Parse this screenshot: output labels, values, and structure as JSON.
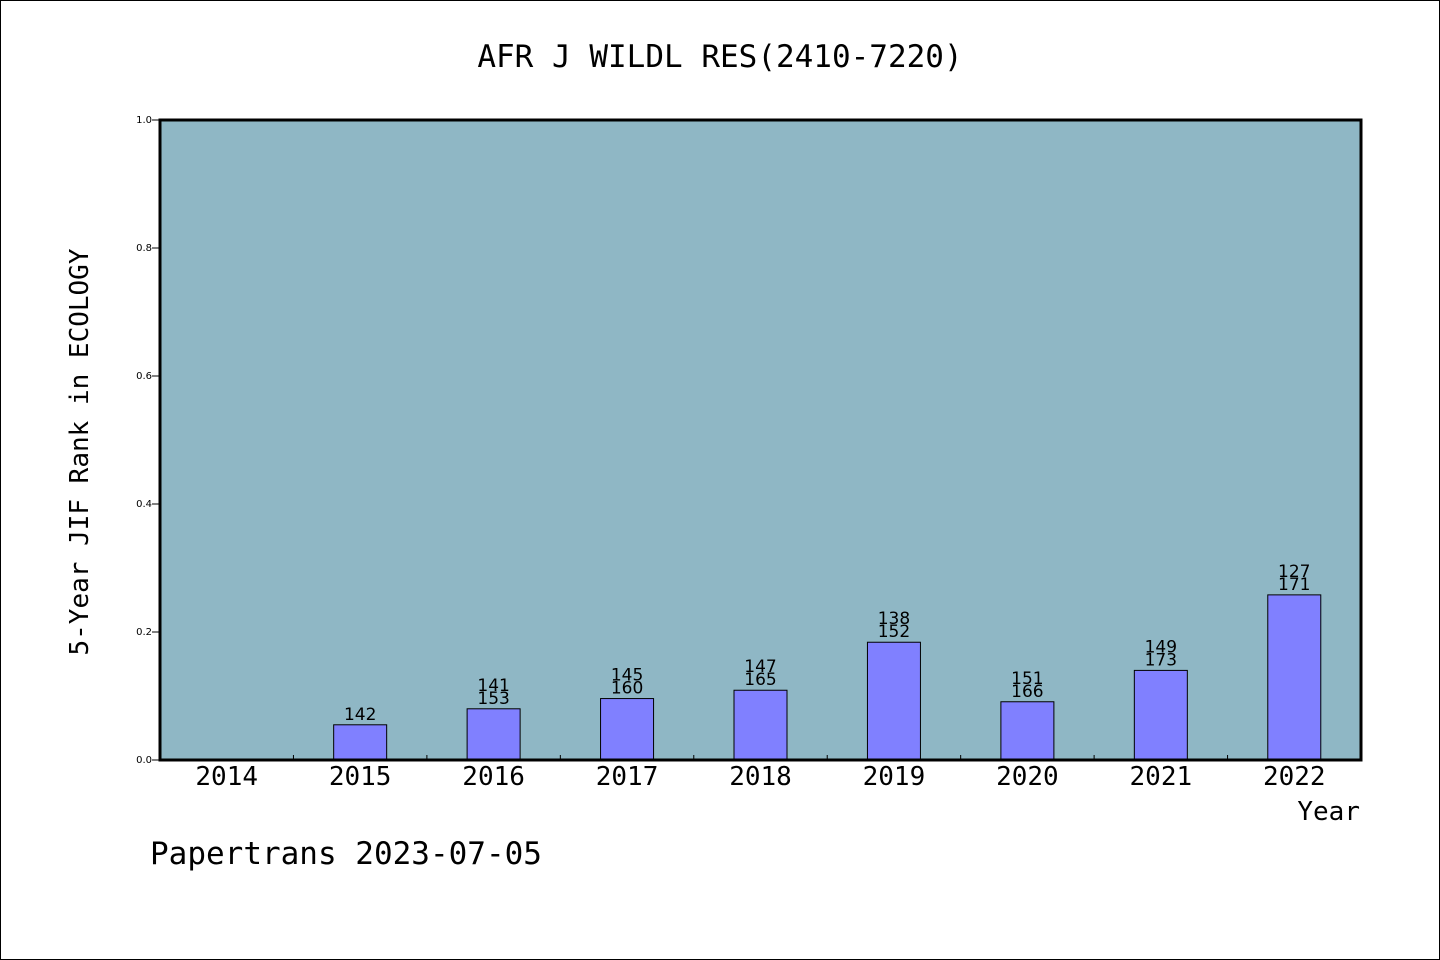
{
  "chart_data": {
    "type": "bar",
    "title": "AFR J WILDL RES(2410-7220)",
    "xlabel": "Year",
    "ylabel": "5-Year JIF Rank in ECOLOGY",
    "footer": "Papertrans 2023-07-05",
    "ylim": [
      0.0,
      1.0
    ],
    "yticks": [
      "0.0",
      "0.2",
      "0.4",
      "0.6",
      "0.8",
      "1.0"
    ],
    "categories": [
      "2014",
      "2015",
      "2016",
      "2017",
      "2018",
      "2019",
      "2020",
      "2021",
      "2022"
    ],
    "values": [
      null,
      0.055,
      0.08,
      0.096,
      0.109,
      0.184,
      0.091,
      0.14,
      0.258
    ],
    "labels_top": [
      null,
      null,
      "141",
      "145",
      "147",
      "138",
      "151",
      "149",
      "127"
    ],
    "labels_bottom": [
      null,
      "142",
      "153",
      "160",
      "165",
      "152",
      "166",
      "173",
      "171"
    ],
    "grid": false,
    "colors": {
      "plot_background": "#8fb7c5",
      "bar_fill": "#8080ff",
      "bar_stroke": "#000000"
    }
  }
}
